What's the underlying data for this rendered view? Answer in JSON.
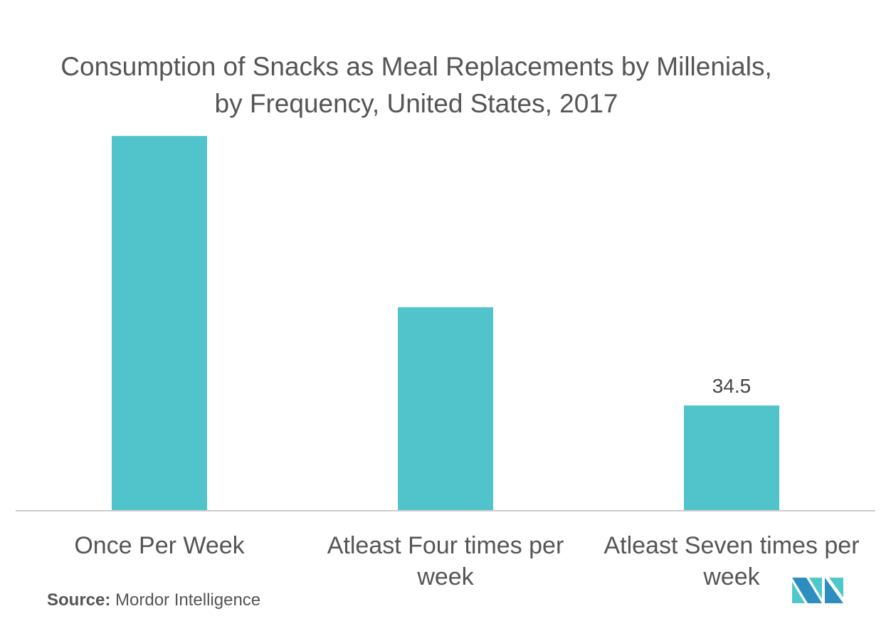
{
  "chart_data": {
    "type": "bar",
    "title": "Consumption of Snacks as Meal Replacements by Millenials, by Frequency, United States, 2017",
    "categories": [
      "Once Per Week",
      "Atleast Four times per week",
      "Atleast Seven times per week"
    ],
    "values": [
      122.8,
      66.7,
      34.5
    ],
    "data_labels": [
      "",
      "",
      "34.5"
    ],
    "xlabel": "",
    "ylabel": "",
    "ylim": [
      0,
      130
    ],
    "grid": false,
    "color": "#50C4CA"
  },
  "source": {
    "label": "Source:",
    "text": "Mordor Intelligence"
  },
  "logo": {
    "text": "Mordor Intelligence"
  }
}
